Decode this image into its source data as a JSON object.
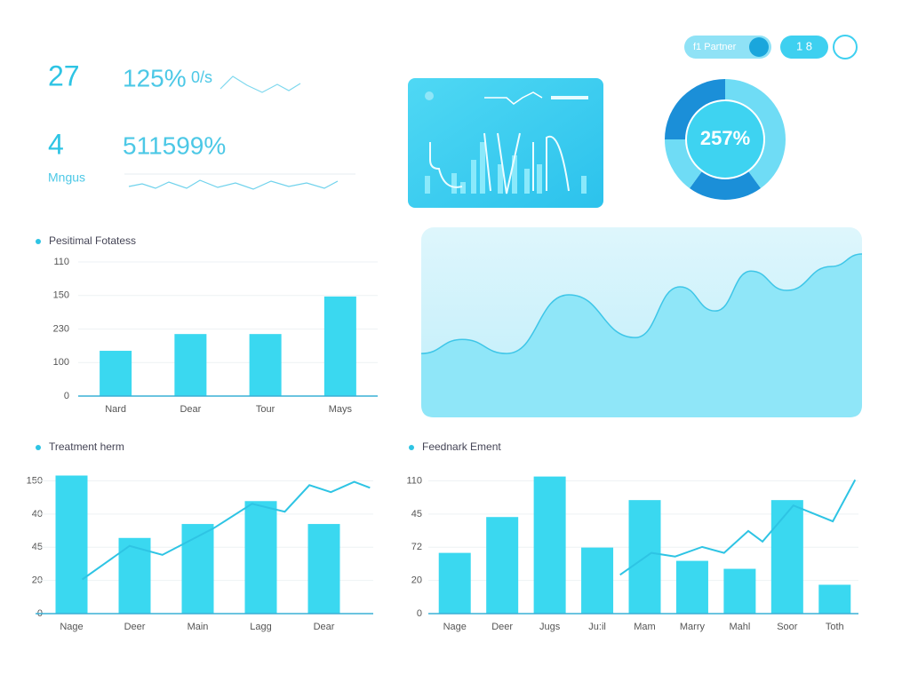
{
  "header": {
    "pill_text": "f1 Partner",
    "pill2_text": "1 8"
  },
  "kpis": [
    {
      "value_text": "27",
      "detail": "125%",
      "extra": "0/s"
    },
    {
      "value_text": "4",
      "detail": "511599%",
      "extra": "Mngus"
    }
  ],
  "chart_data": [
    {
      "type": "pie",
      "center_label": "257%",
      "values": [
        40,
        20,
        15,
        25
      ],
      "colors": [
        "#6fdcf5",
        "#1b8fd8",
        "#6fdcf5",
        "#1b8fd8"
      ]
    },
    {
      "type": "area",
      "x": [
        0,
        9.3,
        19.4,
        33.5,
        48.6,
        58.7,
        66.7,
        74.8,
        82.9,
        93,
        100
      ],
      "values": [
        33.6,
        41,
        33.6,
        64.5,
        42,
        68.7,
        56,
        77,
        66.8,
        79.4,
        86
      ],
      "xlim": [
        0,
        100
      ],
      "ylim": [
        0,
        100
      ],
      "color": "#3ec6e8"
    },
    {
      "type": "bar",
      "title": "Pesitimal Fotatess",
      "categories": [
        "Nard",
        "Dear",
        "Tour",
        "Mays"
      ],
      "values": [
        1.35,
        1.85,
        1.85,
        2.97
      ],
      "color": "#3ad8f0",
      "ylim": [
        0,
        4
      ],
      "yticks": [
        0,
        {
          "value": 1,
          "label": "100"
        },
        {
          "value": 2,
          "label": "230"
        },
        {
          "value": 3,
          "label": "150"
        },
        {
          "value": 4,
          "label": "110"
        }
      ],
      "grid": true
    },
    {
      "type": "bar",
      "title": "Treatment herm",
      "categories": [
        "Nage",
        "Deer",
        "Main",
        "Lagg",
        "Dear"
      ],
      "values": [
        4.16,
        2.28,
        2.7,
        3.39,
        2.7
      ],
      "color": "#3ad8f0",
      "ylim": [
        0,
        4.2
      ],
      "yticks": [
        0,
        {
          "value": 1,
          "label": "20"
        },
        {
          "value": 2,
          "label": "45"
        },
        {
          "value": 3,
          "label": "40"
        },
        {
          "value": 4,
          "label": "150"
        }
      ],
      "grid": true,
      "line": {
        "color": "#2ec4e4",
        "x": [
          0.17,
          0.92,
          1.44,
          2.25,
          2.86,
          3.38,
          3.77,
          4.11,
          4.48,
          4.73
        ],
        "values": [
          1.03,
          2.04,
          1.77,
          2.57,
          3.31,
          3.07,
          3.87,
          3.66,
          3.97,
          3.79
        ]
      }
    },
    {
      "type": "bar",
      "title": "Feednark Ement",
      "categories": [
        "Nage",
        "Deer",
        "Jugs",
        "Ju:il",
        "Mam",
        "Marry",
        "Mahl",
        "Soor",
        "Toth"
      ],
      "values": [
        1.83,
        2.91,
        4.13,
        1.99,
        3.42,
        1.59,
        1.35,
        3.42,
        0.87
      ],
      "color": "#3ad8f0",
      "ylim": [
        0,
        4.2
      ],
      "yticks": [
        0,
        {
          "value": 1,
          "label": "20"
        },
        {
          "value": 2,
          "label": "72"
        },
        {
          "value": 3,
          "label": "45"
        },
        {
          "value": 4,
          "label": "110"
        }
      ],
      "grid": true,
      "line": {
        "color": "#2ec4e4",
        "x": [
          3.48,
          4.14,
          4.64,
          5.21,
          5.67,
          6.18,
          6.48,
          7.13,
          7.96,
          8.43
        ],
        "values": [
          1.17,
          1.83,
          1.72,
          2.01,
          1.83,
          2.49,
          2.17,
          3.26,
          2.78,
          4.03
        ]
      }
    }
  ]
}
